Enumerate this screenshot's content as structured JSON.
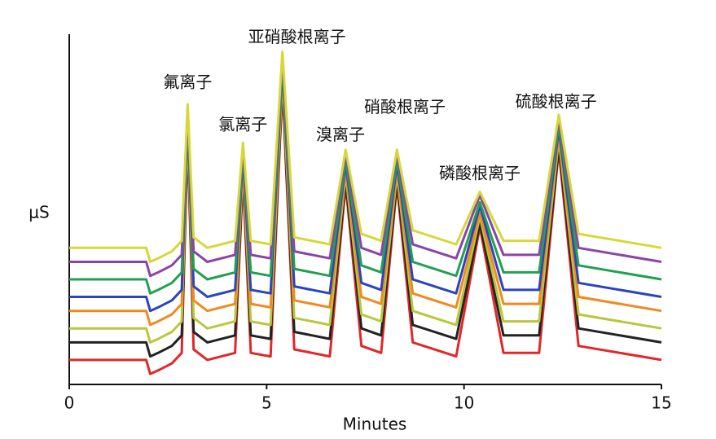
{
  "chart_data": {
    "type": "line",
    "xlabel": "Minutes",
    "ylabel": "μS",
    "x": [
      0,
      1.95,
      2.05,
      2.25,
      2.6,
      2.85,
      3.0,
      3.15,
      3.5,
      4.2,
      4.4,
      4.6,
      5.1,
      5.4,
      5.7,
      6.6,
      7.0,
      7.4,
      7.9,
      8.3,
      8.7,
      9.8,
      10.4,
      11.0,
      11.9,
      12.4,
      12.9,
      15
    ],
    "xlim": [
      0,
      15
    ],
    "xticks": [
      0,
      5,
      10,
      15
    ],
    "ylim": [
      0,
      100
    ],
    "series": [
      {
        "color": "#e02828",
        "values": [
          7,
          7,
          3,
          4,
          6,
          9,
          70,
          10,
          7,
          9,
          59,
          9,
          8,
          85,
          10,
          8,
          57,
          11,
          9,
          57,
          12,
          8,
          45,
          9,
          9,
          67,
          11,
          7
        ]
      },
      {
        "color": "#222222",
        "values": [
          12,
          12,
          8,
          9,
          11,
          14,
          71,
          15,
          12,
          14,
          60,
          14,
          13,
          86,
          15,
          13,
          58,
          16,
          14,
          58,
          17,
          13,
          46,
          14,
          14,
          68,
          16,
          12
        ]
      },
      {
        "color": "#b8c83c",
        "values": [
          16,
          16,
          12,
          13,
          15,
          18,
          73,
          19,
          16,
          18,
          62,
          18,
          17,
          88,
          19,
          17,
          60,
          20,
          18,
          60,
          21,
          17,
          48,
          18,
          18,
          70,
          20,
          16
        ]
      },
      {
        "color": "#f08a20",
        "values": [
          21,
          21,
          17,
          18,
          20,
          23,
          74,
          24,
          21,
          23,
          63,
          23,
          22,
          89,
          24,
          22,
          61,
          25,
          23,
          61,
          26,
          22,
          49,
          23,
          23,
          71,
          25,
          21
        ]
      },
      {
        "color": "#2a44c0",
        "values": [
          25,
          25,
          21,
          22,
          24,
          27,
          76,
          28,
          25,
          27,
          65,
          27,
          26,
          91,
          28,
          26,
          63,
          29,
          27,
          63,
          30,
          26,
          51,
          27,
          27,
          73,
          29,
          25
        ]
      },
      {
        "color": "#22a050",
        "values": [
          30,
          30,
          26,
          27,
          29,
          32,
          77,
          33,
          30,
          32,
          66,
          32,
          31,
          92,
          33,
          31,
          64,
          34,
          32,
          64,
          35,
          31,
          52,
          32,
          32,
          74,
          34,
          30
        ]
      },
      {
        "color": "#8a44a8",
        "values": [
          35,
          35,
          31,
          32,
          34,
          37,
          79,
          38,
          35,
          37,
          68,
          37,
          36,
          94,
          38,
          36,
          66,
          39,
          37,
          66,
          40,
          36,
          54,
          37,
          37,
          76,
          39,
          35
        ]
      },
      {
        "color": "#d6d838",
        "values": [
          39,
          39,
          35,
          36,
          38,
          41,
          80,
          42,
          39,
          41,
          69,
          41,
          40,
          95,
          42,
          40,
          67,
          43,
          41,
          67,
          44,
          40,
          55,
          41,
          41,
          77,
          43,
          39
        ]
      }
    ],
    "annotations": [
      {
        "text": "氟离子",
        "x": 3.0,
        "y": 86
      },
      {
        "text": "氯离子",
        "x": 4.4,
        "y": 74
      },
      {
        "text": "亚硝酸根离子",
        "x": 5.77,
        "y": 99
      },
      {
        "text": "溴离子",
        "x": 6.87,
        "y": 71
      },
      {
        "text": "硝酸根离子",
        "x": 8.5,
        "y": 79
      },
      {
        "text": "磷酸根离子",
        "x": 10.4,
        "y": 60
      },
      {
        "text": "硫酸根离子",
        "x": 12.33,
        "y": 80.5
      }
    ]
  }
}
